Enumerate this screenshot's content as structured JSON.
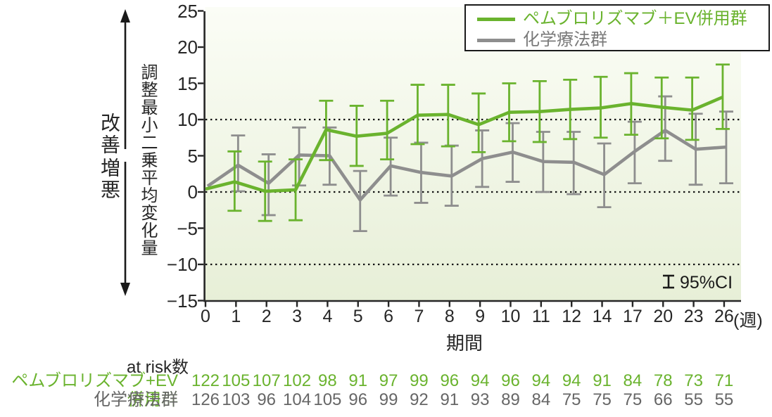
{
  "colors": {
    "green": "#6ab32e",
    "gray_line": "#8e8e8e",
    "gray_text": "#666666",
    "legend_gray_text": "#7a7a7a",
    "axis": "#262626",
    "dotted_line": "#111111",
    "plot_bg_top": "#fbfdf6",
    "plot_bg_bottom": "#e7efd7"
  },
  "chart_data": {
    "type": "line",
    "title": "",
    "xlabel": "期間",
    "x_unit": "(週)",
    "ylabel": "調整最小二乗平均変化量",
    "direction_up": "改善",
    "direction_down": "増悪",
    "ylim": [
      -15,
      25
    ],
    "ytick_values": [
      25,
      20,
      15,
      10,
      5,
      0,
      -5,
      -10,
      -15
    ],
    "ytick_labels": [
      "25",
      "20",
      "15",
      "10",
      "5",
      "0",
      "−5",
      "−10",
      "−15"
    ],
    "x_weeks": [
      0,
      1,
      2,
      3,
      4,
      5,
      6,
      7,
      8,
      9,
      10,
      11,
      12,
      14,
      17,
      20,
      23,
      26
    ],
    "x_tick_labels": [
      "0",
      "1",
      "2",
      "3",
      "4",
      "5",
      "6",
      "7",
      "8",
      "9",
      "10",
      "11",
      "12",
      "14",
      "17",
      "20",
      "23",
      "26"
    ],
    "reference_lines": [
      10,
      0,
      -10
    ],
    "grid": false,
    "legend_position": "top-right",
    "error_bars": "95%CI",
    "ci_label": "95%CI",
    "at_risk_header": "at risk数",
    "series": [
      {
        "name": "ペムブロリズマブ＋EV併用群",
        "at_risk_label": "ペムブロリズマブ+EV併用群",
        "color": "#6ab32e",
        "values": [
          0.4,
          1.4,
          0.1,
          0.3,
          8.6,
          7.7,
          8.1,
          10.6,
          10.7,
          9.3,
          11.0,
          11.1,
          11.4,
          11.6,
          12.2,
          11.7,
          11.3,
          13.1
        ],
        "ci_low": [
          null,
          -2.6,
          -4.0,
          -3.9,
          4.4,
          3.6,
          4.5,
          6.6,
          6.3,
          5.5,
          7.0,
          6.9,
          7.3,
          7.5,
          7.9,
          7.4,
          7.2,
          8.7
        ],
        "ci_high": [
          null,
          5.6,
          4.2,
          4.5,
          12.6,
          11.9,
          12.6,
          14.8,
          14.8,
          13.6,
          15.0,
          15.3,
          15.5,
          15.9,
          16.4,
          15.8,
          15.8,
          17.6
        ],
        "at_risk": [
          122,
          105,
          107,
          102,
          98,
          91,
          97,
          99,
          96,
          94,
          96,
          94,
          94,
          91,
          84,
          78,
          73,
          71
        ]
      },
      {
        "name": "化学療法群",
        "at_risk_label": "化学療法群",
        "color": "#8e8e8e",
        "values": [
          0.8,
          3.7,
          1.2,
          5.1,
          5.0,
          -1.1,
          3.6,
          2.7,
          2.2,
          4.6,
          5.5,
          4.2,
          4.1,
          2.4,
          5.6,
          8.5,
          5.9,
          6.2
        ],
        "ci_low": [
          null,
          0.1,
          -3.2,
          0.9,
          1.0,
          -5.4,
          -0.5,
          -1.5,
          -1.9,
          0.7,
          1.4,
          0.0,
          -0.3,
          -2.1,
          1.2,
          4.3,
          1.0,
          1.2
        ],
        "ci_high": [
          null,
          7.8,
          5.2,
          8.9,
          8.9,
          2.9,
          7.5,
          6.8,
          6.4,
          8.5,
          9.5,
          8.3,
          8.3,
          6.7,
          9.7,
          13.2,
          10.8,
          11.1
        ],
        "at_risk": [
          126,
          103,
          96,
          104,
          105,
          96,
          99,
          92,
          91,
          93,
          89,
          84,
          75,
          75,
          75,
          66,
          55,
          55
        ]
      }
    ]
  }
}
